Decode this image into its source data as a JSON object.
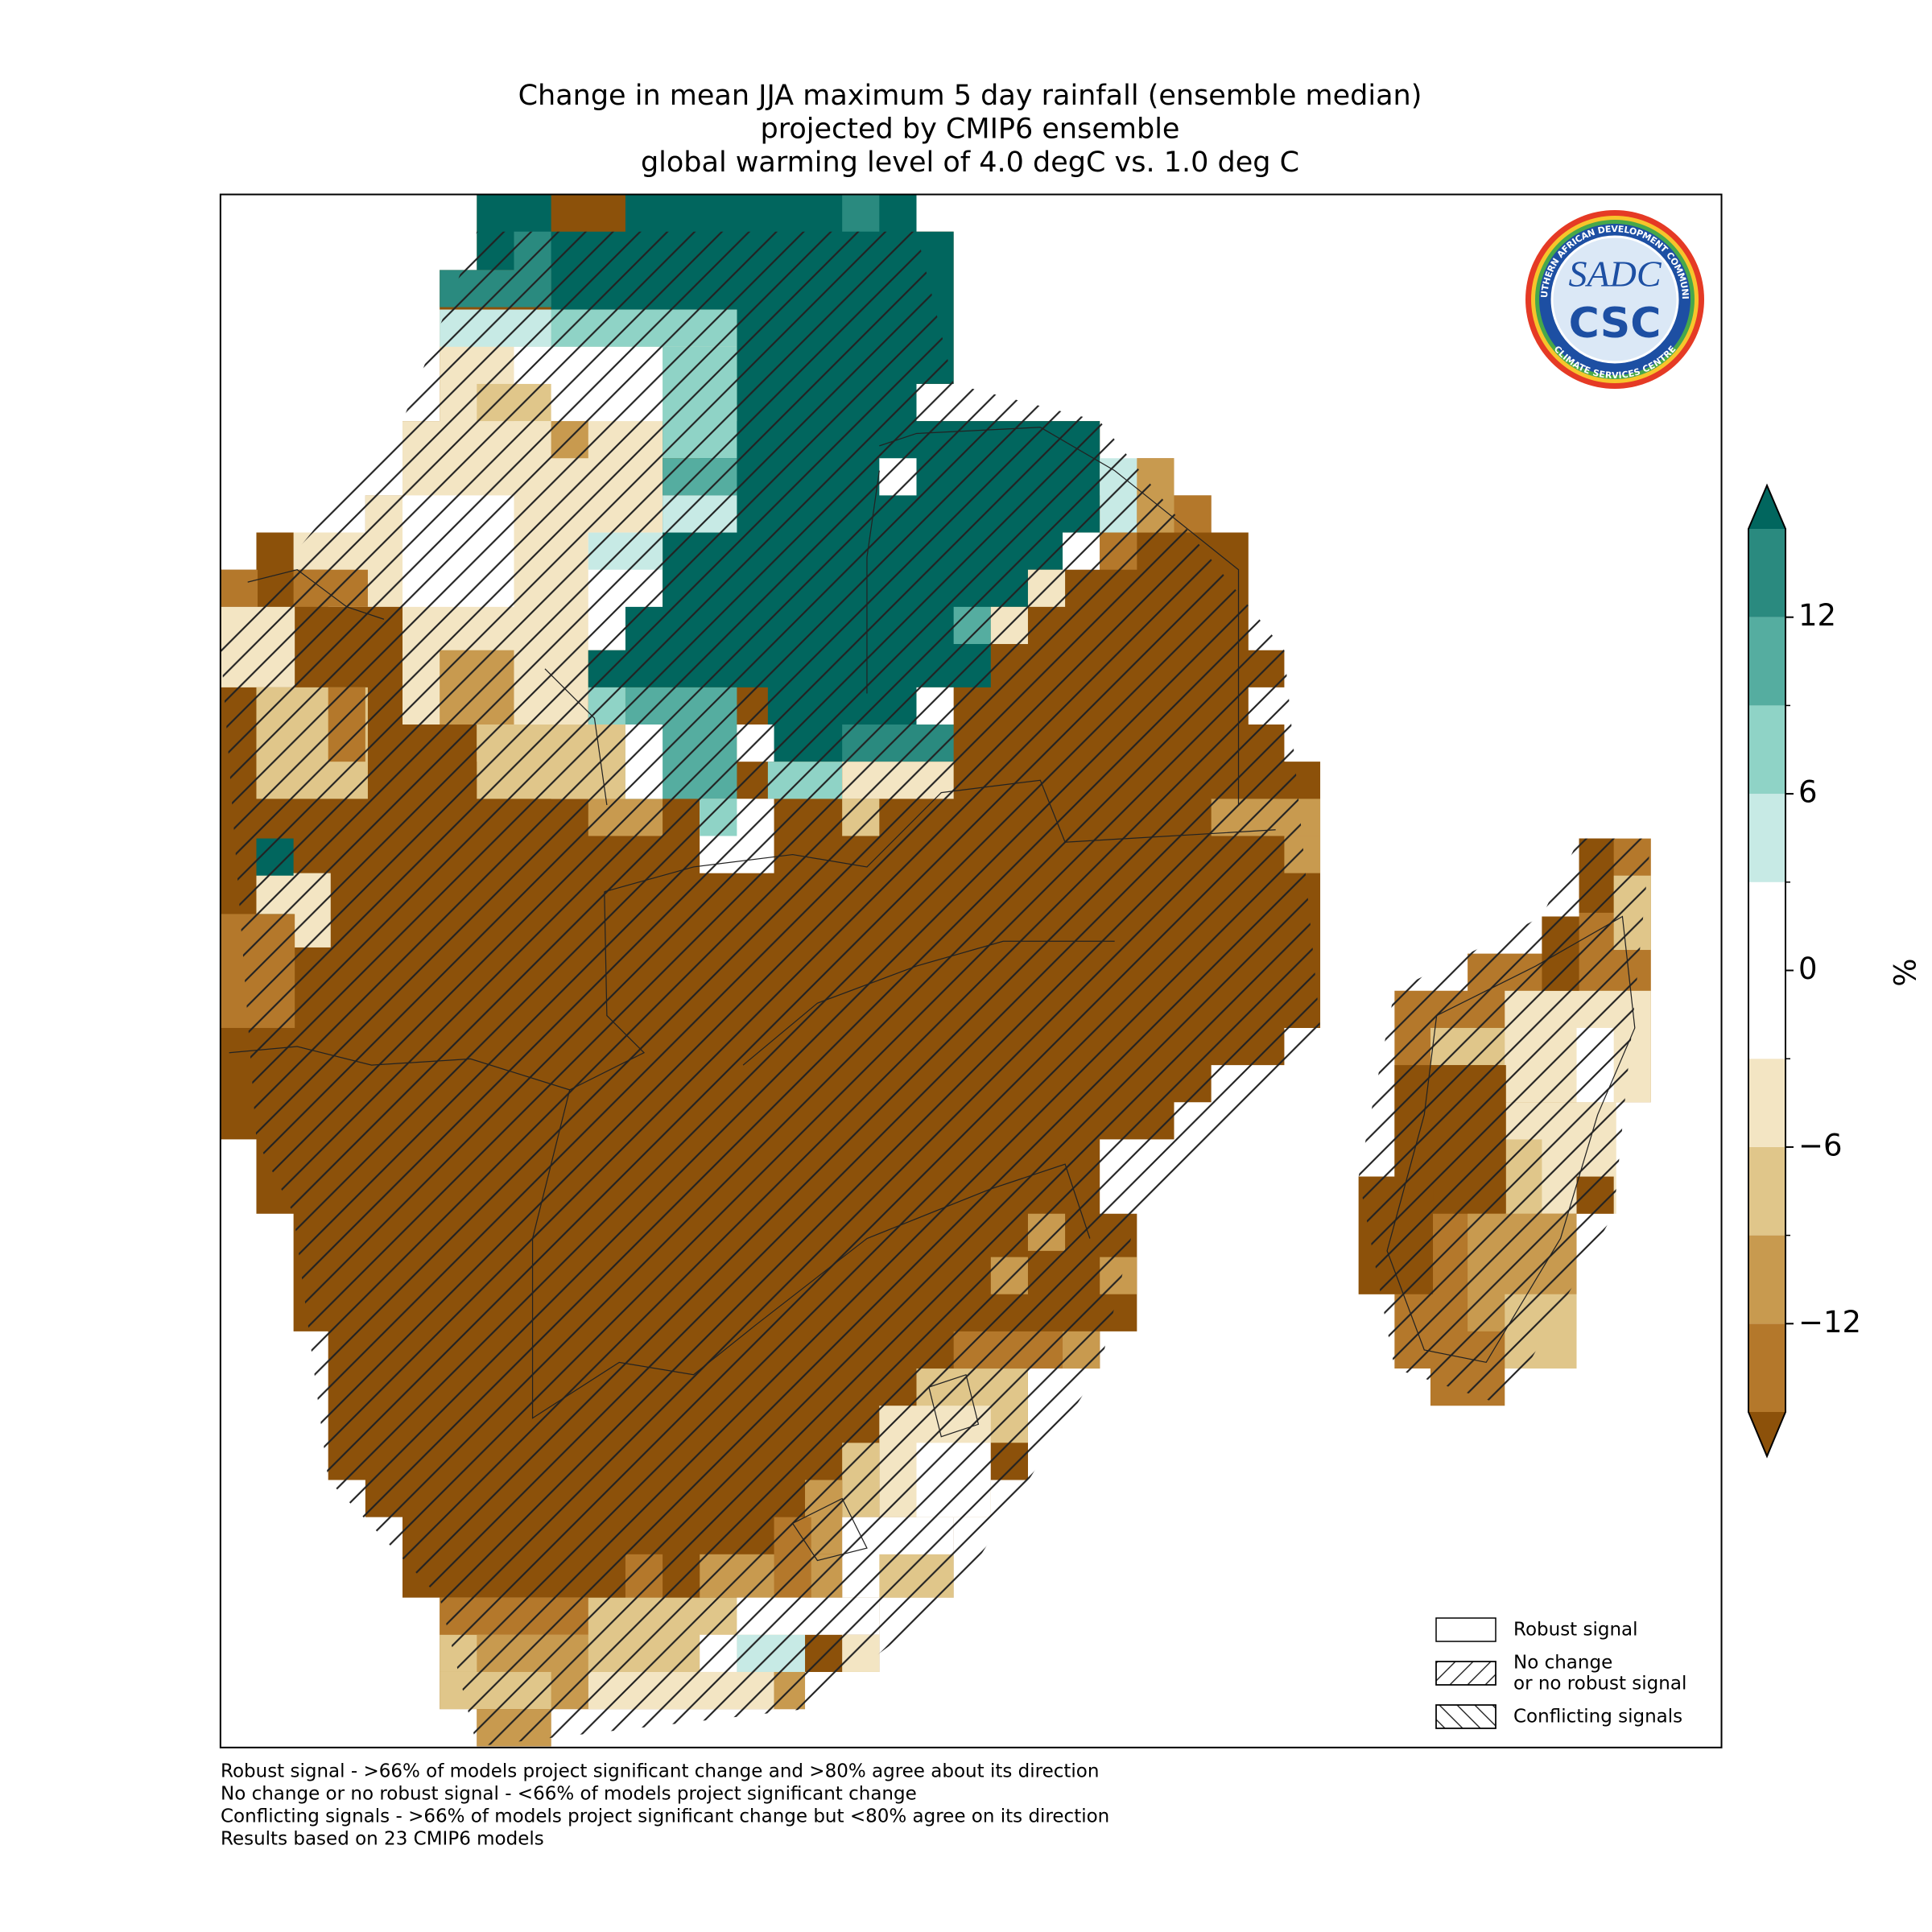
{
  "map": {
    "title": [
      "Change in mean JJA maximum 5 day rainfall (ensemble median)",
      "projected by CMIP6 ensemble",
      "global warming level of 4.0 degC vs. 1.0 deg C"
    ],
    "colorbar": {
      "label": "%",
      "levels": [
        -15,
        -12,
        -9,
        -6,
        -3,
        3,
        6,
        9,
        12,
        15
      ],
      "colors": [
        "#b4782b",
        "#c89a4f",
        "#e0c68a",
        "#f3e5c3",
        "#ffffff",
        "#c7eae5",
        "#8fd3c6",
        "#55ada0",
        "#2a8a7f"
      ],
      "extend_low_color": "#8c510a",
      "extend_high_color": "#01665e",
      "ticks": [
        {
          "value": -12,
          "label": "−12"
        },
        {
          "value": -6,
          "label": "−6"
        },
        0,
        6,
        12
      ]
    },
    "legend": [
      {
        "lines": [
          "Robust signal"
        ],
        "hatch": "none"
      },
      {
        "lines": [
          "No change",
          "or no robust signal"
        ],
        "hatch": "forward"
      },
      {
        "lines": [
          "Conflicting signals"
        ],
        "hatch": "back"
      }
    ],
    "footnotes": [
      "Robust signal - >66% of models project significant change and >80% agree about its direction",
      "No change or no robust signal - <66% of models project significant change",
      "Conflicting signals - >66% of models project significant change but <80% agree on its direction",
      "Results based on 23 CMIP6 models"
    ],
    "logo": {
      "ring_top": "SOUTHERN AFRICAN DEVELOPMENT COMMUNITY",
      "ring_bottom": "CLIMATE SERVICES CENTRE",
      "mark": "SADC",
      "name": "CSC"
    }
  }
}
